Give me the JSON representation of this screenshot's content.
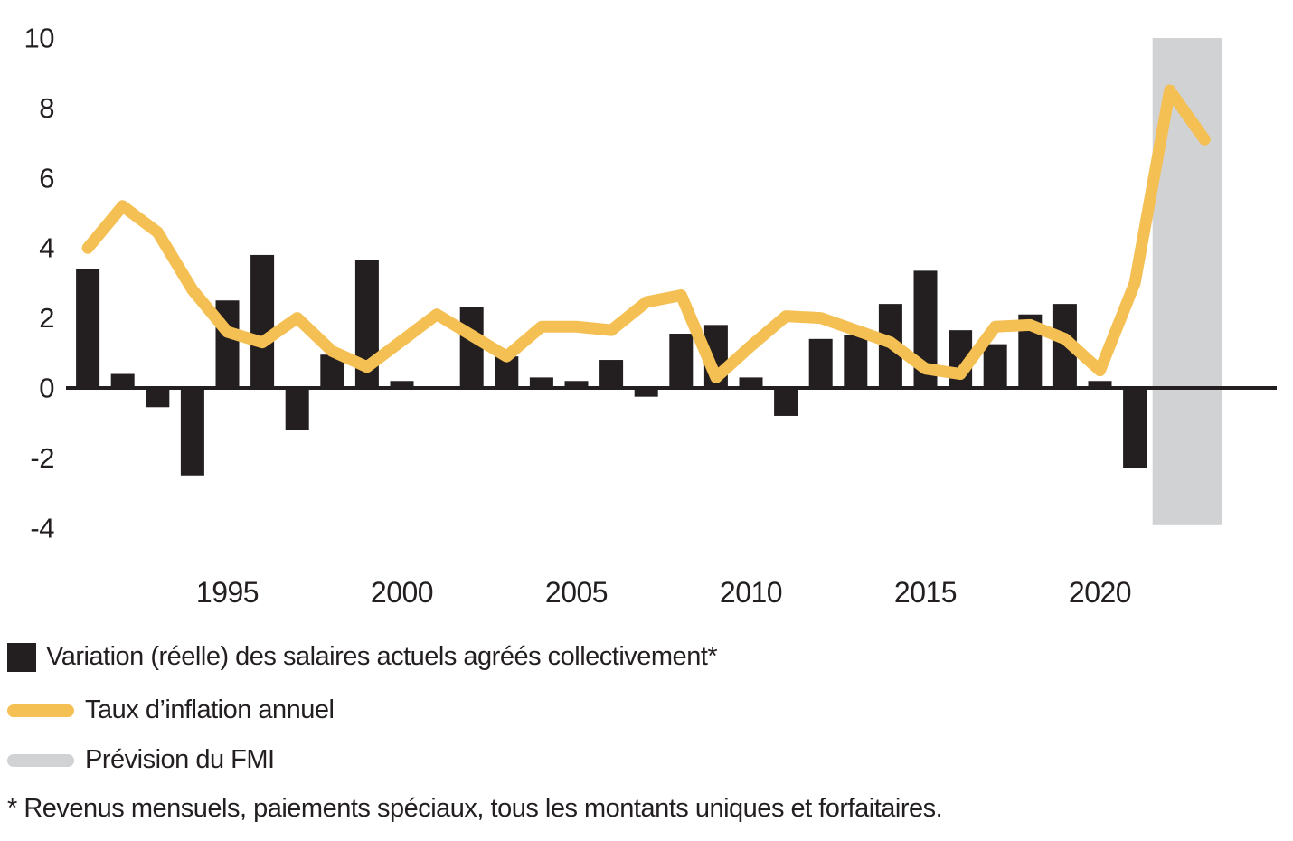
{
  "chart_data": {
    "type": "bar",
    "title": "",
    "x": [
      1991,
      1992,
      1993,
      1994,
      1995,
      1996,
      1997,
      1998,
      1999,
      2000,
      2001,
      2002,
      2003,
      2004,
      2005,
      2006,
      2007,
      2008,
      2009,
      2010,
      2011,
      2012,
      2013,
      2014,
      2015,
      2016,
      2017,
      2018,
      2019,
      2020,
      2021,
      2022,
      2023
    ],
    "series": [
      {
        "name": "Variation (réelle) des salaires actuels agréés collectivement*",
        "type": "bar",
        "color": "#231F20",
        "values": [
          3.4,
          0.4,
          -0.55,
          -2.5,
          2.5,
          3.8,
          -1.2,
          0.95,
          3.65,
          0.2,
          0,
          2.3,
          0.9,
          0.3,
          0.2,
          0.8,
          -0.25,
          1.55,
          1.8,
          0.3,
          -0.8,
          1.4,
          1.5,
          2.4,
          3.35,
          1.65,
          1.25,
          2.1,
          2.4,
          0.2,
          -2.3,
          null,
          null
        ]
      },
      {
        "name": "Taux d’inflation annuel",
        "type": "line",
        "color": "#F4C054",
        "values": [
          4.0,
          5.2,
          4.45,
          2.8,
          1.6,
          1.3,
          2.0,
          1.05,
          0.6,
          1.35,
          2.1,
          1.5,
          0.9,
          1.75,
          1.75,
          1.65,
          2.45,
          2.65,
          0.3,
          1.2,
          2.05,
          2.0,
          1.65,
          1.3,
          0.55,
          0.4,
          1.75,
          1.8,
          1.4,
          0.5,
          3.0,
          8.5,
          7.1
        ]
      }
    ],
    "forecast_band": {
      "label": "Prévision du FMI",
      "color": "#D1D2D4",
      "start_year": 2022,
      "end_year": 2023
    },
    "y_axis": {
      "ticks": [
        10,
        8,
        6,
        4,
        2,
        0,
        -2,
        -4
      ],
      "min": -4,
      "max": 10
    },
    "x_axis": {
      "ticks": [
        1995,
        2000,
        2005,
        2010,
        2015,
        2020
      ]
    },
    "grid": false,
    "legend_position": "bottom-left"
  },
  "legend": {
    "items": [
      {
        "label": "Variation (réelle) des salaires actuels agréés collectivement*",
        "swatch": "square",
        "color": "#231F20"
      },
      {
        "label": "Taux d’inflation annuel",
        "swatch": "pill",
        "color": "#F4C054"
      },
      {
        "label": "Prévision du FMI",
        "swatch": "pill",
        "color": "#D1D2D4"
      }
    ]
  },
  "footnote": "* Revenus mensuels, paiements spéciaux, tous les montants uniques et forfaitaires."
}
